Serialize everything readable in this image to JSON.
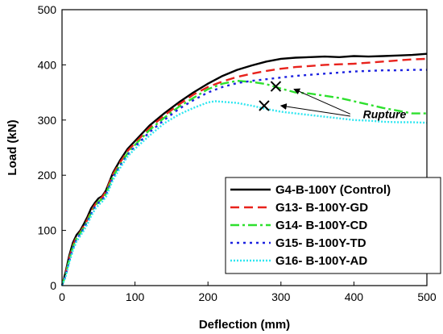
{
  "chart_data": {
    "type": "line",
    "xlabel": "Deflection (mm)",
    "ylabel": "Load (kN)",
    "xlim": [
      0,
      500
    ],
    "ylim": [
      0,
      500
    ],
    "xticks": [
      0,
      100,
      200,
      300,
      400,
      500
    ],
    "yticks": [
      0,
      100,
      200,
      300,
      400,
      500
    ],
    "grid": false,
    "legend": "bottom-right",
    "series": [
      {
        "name": "G4-B-100Y (Control)",
        "color": "#000000",
        "style": "solid",
        "x": [
          0,
          5,
          10,
          15,
          20,
          25,
          30,
          35,
          40,
          45,
          50,
          55,
          60,
          70,
          80,
          90,
          100,
          120,
          140,
          160,
          180,
          200,
          220,
          240,
          260,
          280,
          300,
          320,
          340,
          360,
          380,
          400,
          420,
          440,
          460,
          480,
          500
        ],
        "values": [
          0,
          25,
          55,
          78,
          92,
          100,
          112,
          125,
          140,
          150,
          158,
          162,
          172,
          205,
          228,
          248,
          262,
          290,
          312,
          332,
          350,
          366,
          380,
          391,
          399,
          406,
          411,
          413,
          414,
          415,
          414,
          416,
          415,
          416,
          417,
          418,
          420
        ]
      },
      {
        "name": "G13- B-100Y-GD",
        "color": "#e8221c",
        "style": "dashed",
        "x": [
          0,
          5,
          10,
          15,
          20,
          25,
          30,
          35,
          40,
          45,
          50,
          55,
          60,
          70,
          80,
          90,
          100,
          120,
          140,
          160,
          180,
          200,
          220,
          240,
          260,
          280,
          300,
          320,
          340,
          360,
          380,
          400,
          420,
          440,
          460,
          480,
          500
        ],
        "values": [
          0,
          22,
          50,
          73,
          88,
          97,
          108,
          120,
          135,
          146,
          155,
          160,
          170,
          202,
          224,
          244,
          258,
          286,
          308,
          328,
          346,
          360,
          370,
          378,
          384,
          389,
          393,
          396,
          398,
          400,
          401,
          402,
          404,
          406,
          408,
          410,
          411
        ]
      },
      {
        "name": "G14- B-100Y-CD",
        "color": "#2ee02e",
        "style": "dash-dot",
        "x": [
          0,
          5,
          10,
          15,
          20,
          25,
          30,
          35,
          40,
          45,
          50,
          55,
          60,
          70,
          80,
          90,
          100,
          120,
          140,
          160,
          180,
          200,
          220,
          240,
          260,
          280,
          300,
          320,
          340,
          360,
          380,
          400,
          420,
          440,
          460,
          480,
          500
        ],
        "values": [
          0,
          20,
          48,
          70,
          86,
          95,
          106,
          118,
          132,
          144,
          152,
          157,
          166,
          198,
          220,
          240,
          255,
          282,
          304,
          324,
          340,
          356,
          366,
          371,
          369,
          365,
          357,
          350,
          348,
          344,
          340,
          334,
          328,
          322,
          317,
          312,
          312
        ]
      },
      {
        "name": "G15- B-100Y-TD",
        "color": "#1c22e0",
        "style": "dotted",
        "x": [
          0,
          5,
          10,
          15,
          20,
          25,
          30,
          35,
          40,
          45,
          50,
          55,
          60,
          70,
          80,
          90,
          100,
          120,
          140,
          160,
          180,
          200,
          220,
          240,
          260,
          280,
          300,
          320,
          340,
          360,
          380,
          400,
          420,
          440,
          460,
          480,
          500
        ],
        "values": [
          0,
          18,
          45,
          67,
          84,
          93,
          104,
          116,
          130,
          142,
          150,
          155,
          164,
          196,
          218,
          237,
          252,
          278,
          300,
          320,
          336,
          350,
          360,
          367,
          371,
          374,
          377,
          380,
          382,
          384,
          386,
          388,
          389,
          390,
          390,
          391,
          391
        ]
      },
      {
        "name": "G16- B-100Y-AD",
        "color": "#2ee6f0",
        "style": "dotted-dense",
        "x": [
          0,
          5,
          10,
          15,
          20,
          25,
          30,
          35,
          40,
          45,
          50,
          55,
          60,
          70,
          80,
          90,
          100,
          120,
          140,
          160,
          180,
          200,
          210,
          220,
          240,
          260,
          280,
          300,
          320,
          340,
          360,
          380,
          400,
          420,
          440,
          460,
          480,
          500
        ],
        "values": [
          0,
          16,
          42,
          64,
          80,
          90,
          100,
          112,
          126,
          138,
          146,
          152,
          160,
          192,
          214,
          234,
          248,
          272,
          294,
          310,
          322,
          332,
          334,
          333,
          331,
          326,
          320,
          315,
          312,
          309,
          306,
          303,
          300,
          299,
          297,
          296,
          296,
          295
        ]
      }
    ],
    "annotations": {
      "label": "Rupture",
      "label_at": [
        442,
        303
      ],
      "markers": [
        {
          "x": 293,
          "y": 361
        },
        {
          "x": 277,
          "y": 326
        }
      ],
      "arrows": [
        {
          "from": [
            395,
            311
          ],
          "to": [
            318,
            356
          ]
        },
        {
          "from": [
            395,
            307
          ],
          "to": [
            300,
            326
          ]
        }
      ]
    }
  }
}
